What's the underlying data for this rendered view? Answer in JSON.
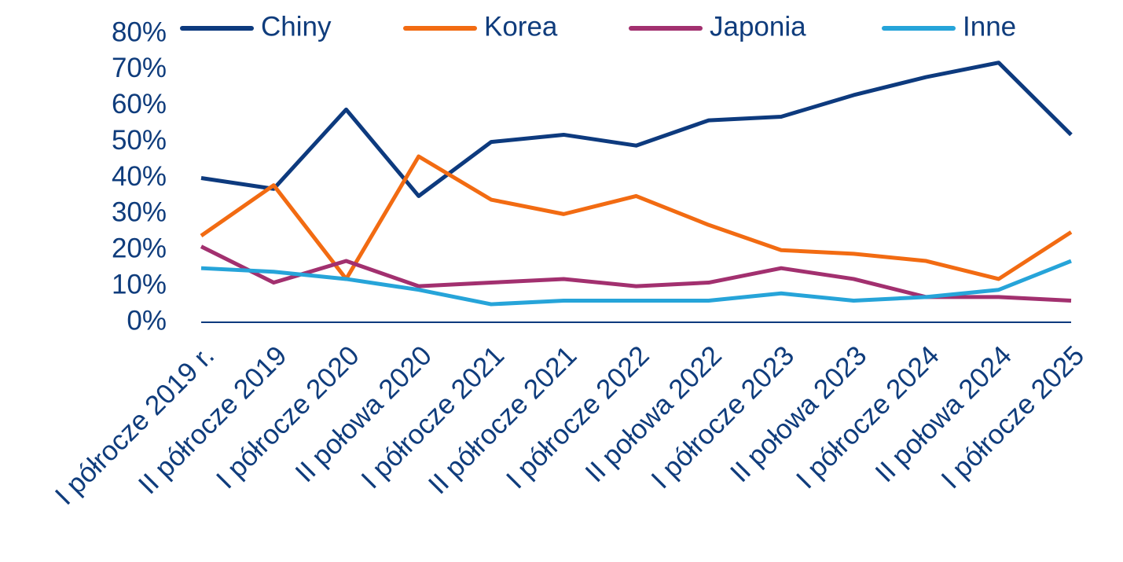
{
  "chart_data": {
    "type": "line",
    "categories": [
      "I półrocze 2019 r.",
      "II półrocze 2019",
      "I półrocze 2020",
      "II połowa 2020",
      "I półrocze 2021",
      "II półrocze 2021",
      "I półrocze 2022",
      "II połowa 2022",
      "I półrocze 2023",
      "II połowa 2023",
      "I półrocze 2024",
      "II połowa 2024",
      "I półrocze 2025"
    ],
    "series": [
      {
        "name": "Chiny",
        "color": "#0d3a7e",
        "values": [
          40,
          37,
          59,
          35,
          50,
          52,
          49,
          56,
          57,
          63,
          68,
          72,
          52
        ]
      },
      {
        "name": "Korea",
        "color": "#f26b12",
        "values": [
          24,
          38,
          12,
          46,
          34,
          30,
          35,
          27,
          20,
          19,
          17,
          12,
          25
        ]
      },
      {
        "name": "Japonia",
        "color": "#a2306f",
        "values": [
          21,
          11,
          17,
          10,
          11,
          12,
          10,
          11,
          15,
          12,
          7,
          7,
          6
        ]
      },
      {
        "name": "Inne",
        "color": "#26a4d9",
        "values": [
          15,
          14,
          12,
          9,
          5,
          6,
          6,
          6,
          8,
          6,
          7,
          9,
          17
        ]
      }
    ],
    "ylim": [
      0,
      80
    ],
    "yticks": [
      {
        "value": 0,
        "label": "0%"
      },
      {
        "value": 10,
        "label": "10%"
      },
      {
        "value": 20,
        "label": "20%"
      },
      {
        "value": 30,
        "label": "30%"
      },
      {
        "value": 40,
        "label": "40%"
      },
      {
        "value": 50,
        "label": "50%"
      },
      {
        "value": 60,
        "label": "60%"
      },
      {
        "value": 70,
        "label": "70%"
      },
      {
        "value": 80,
        "label": "80%"
      }
    ],
    "grid": false,
    "legend": "top"
  }
}
